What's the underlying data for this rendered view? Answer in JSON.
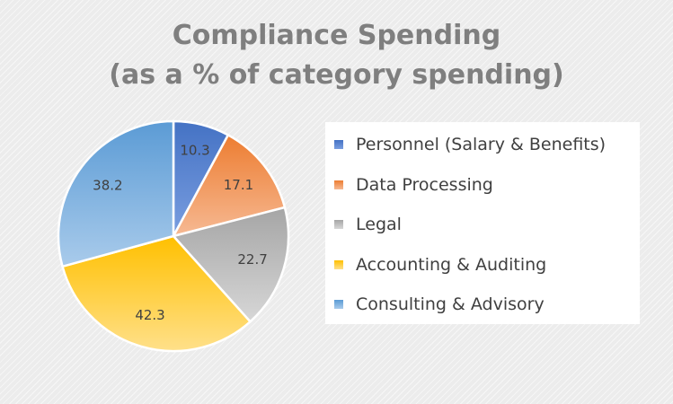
{
  "title_line1": "Compliance Spending",
  "title_line2": "(as a % of category spending)",
  "chart_data": {
    "type": "pie",
    "title": "Compliance Spending (as a % of category spending)",
    "legend_position": "right",
    "slices": [
      {
        "label": "Personnel (Salary & Benefits)",
        "value": 10.3,
        "value_label": "10.3",
        "color": "#4472c4",
        "color_light": "#7a9ee0"
      },
      {
        "label": "Data Processing",
        "value": 17.1,
        "value_label": "17.1",
        "color": "#ed7d31",
        "color_light": "#f6b993"
      },
      {
        "label": "Legal",
        "value": 22.7,
        "value_label": "22.7",
        "color": "#a5a5a5",
        "color_light": "#d7d7d7"
      },
      {
        "label": "Accounting & Auditing",
        "value": 42.3,
        "value_label": "42.3",
        "color": "#ffc000",
        "color_light": "#ffe08a"
      },
      {
        "label": "Consulting & Advisory",
        "value": 38.2,
        "value_label": "38.2",
        "color": "#5b9bd5",
        "color_light": "#a9cbeb"
      }
    ]
  }
}
